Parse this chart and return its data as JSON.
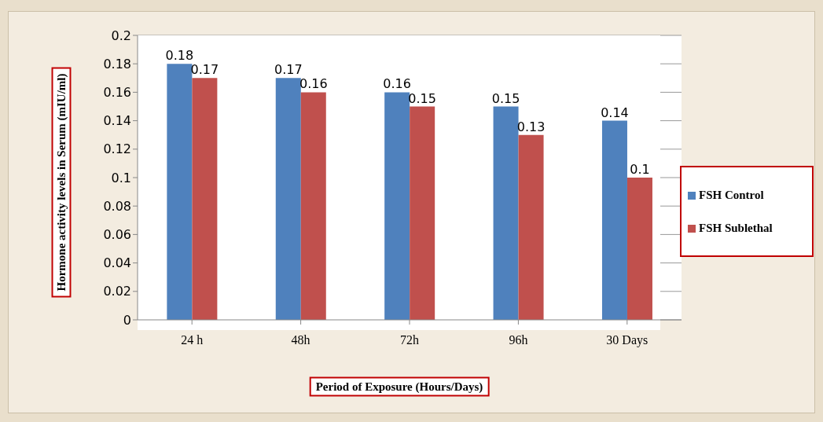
{
  "chart_data": {
    "type": "bar",
    "xlabel": "Period of Exposure (Hours/Days)",
    "ylabel": "Hormone activity levels in Serum (mIU/ml)",
    "categories": [
      "24 h",
      "48h",
      "72h",
      "96h",
      "30 Days"
    ],
    "series": [
      {
        "name": "FSH Control",
        "color": "#4f81bd",
        "values": [
          0.18,
          0.17,
          0.16,
          0.15,
          0.14
        ]
      },
      {
        "name": "FSH Sublethal",
        "color": "#c0504d",
        "values": [
          0.17,
          0.16,
          0.15,
          0.13,
          0.1
        ]
      }
    ],
    "ylim": [
      0,
      0.2
    ],
    "yticks": [
      0,
      0.02,
      0.04,
      0.06,
      0.08,
      0.1,
      0.12,
      0.14,
      0.16,
      0.18,
      0.2
    ],
    "grid": "y",
    "legend": "right",
    "data_labels": true
  }
}
